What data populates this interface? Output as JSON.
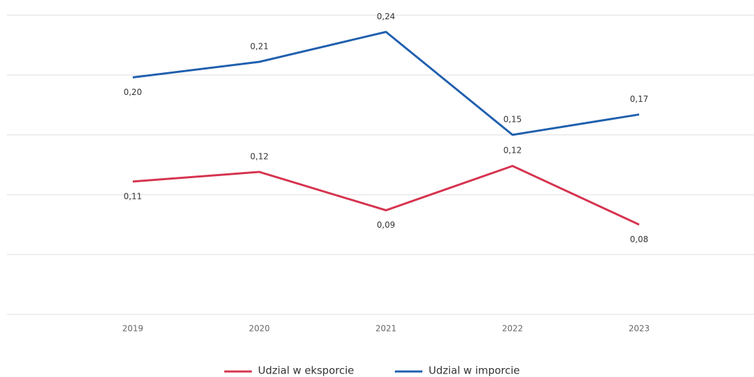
{
  "chart_data": {
    "type": "line",
    "categories": [
      "2019",
      "2020",
      "2021",
      "2022",
      "2023"
    ],
    "series": [
      {
        "name": "Udzial w eksporcie",
        "color": "#d6334f",
        "values": [
          0.111,
          0.119,
          0.087,
          0.124,
          0.075
        ],
        "value_labels": [
          "0,11",
          "0,12",
          "0,09",
          "0,12",
          "0,08"
        ]
      },
      {
        "name": "Udzial w imporcie",
        "color": "#1f5fae",
        "values": [
          0.198,
          0.211,
          0.236,
          0.15,
          0.167
        ],
        "value_labels": [
          "0,20",
          "0,21",
          "0,24",
          "0,15",
          "0,17"
        ]
      }
    ],
    "ylim": [
      0,
      0.25
    ],
    "yticks": [
      0,
      0.05,
      0.1,
      0.15,
      0.2,
      0.25
    ],
    "grid": true
  }
}
